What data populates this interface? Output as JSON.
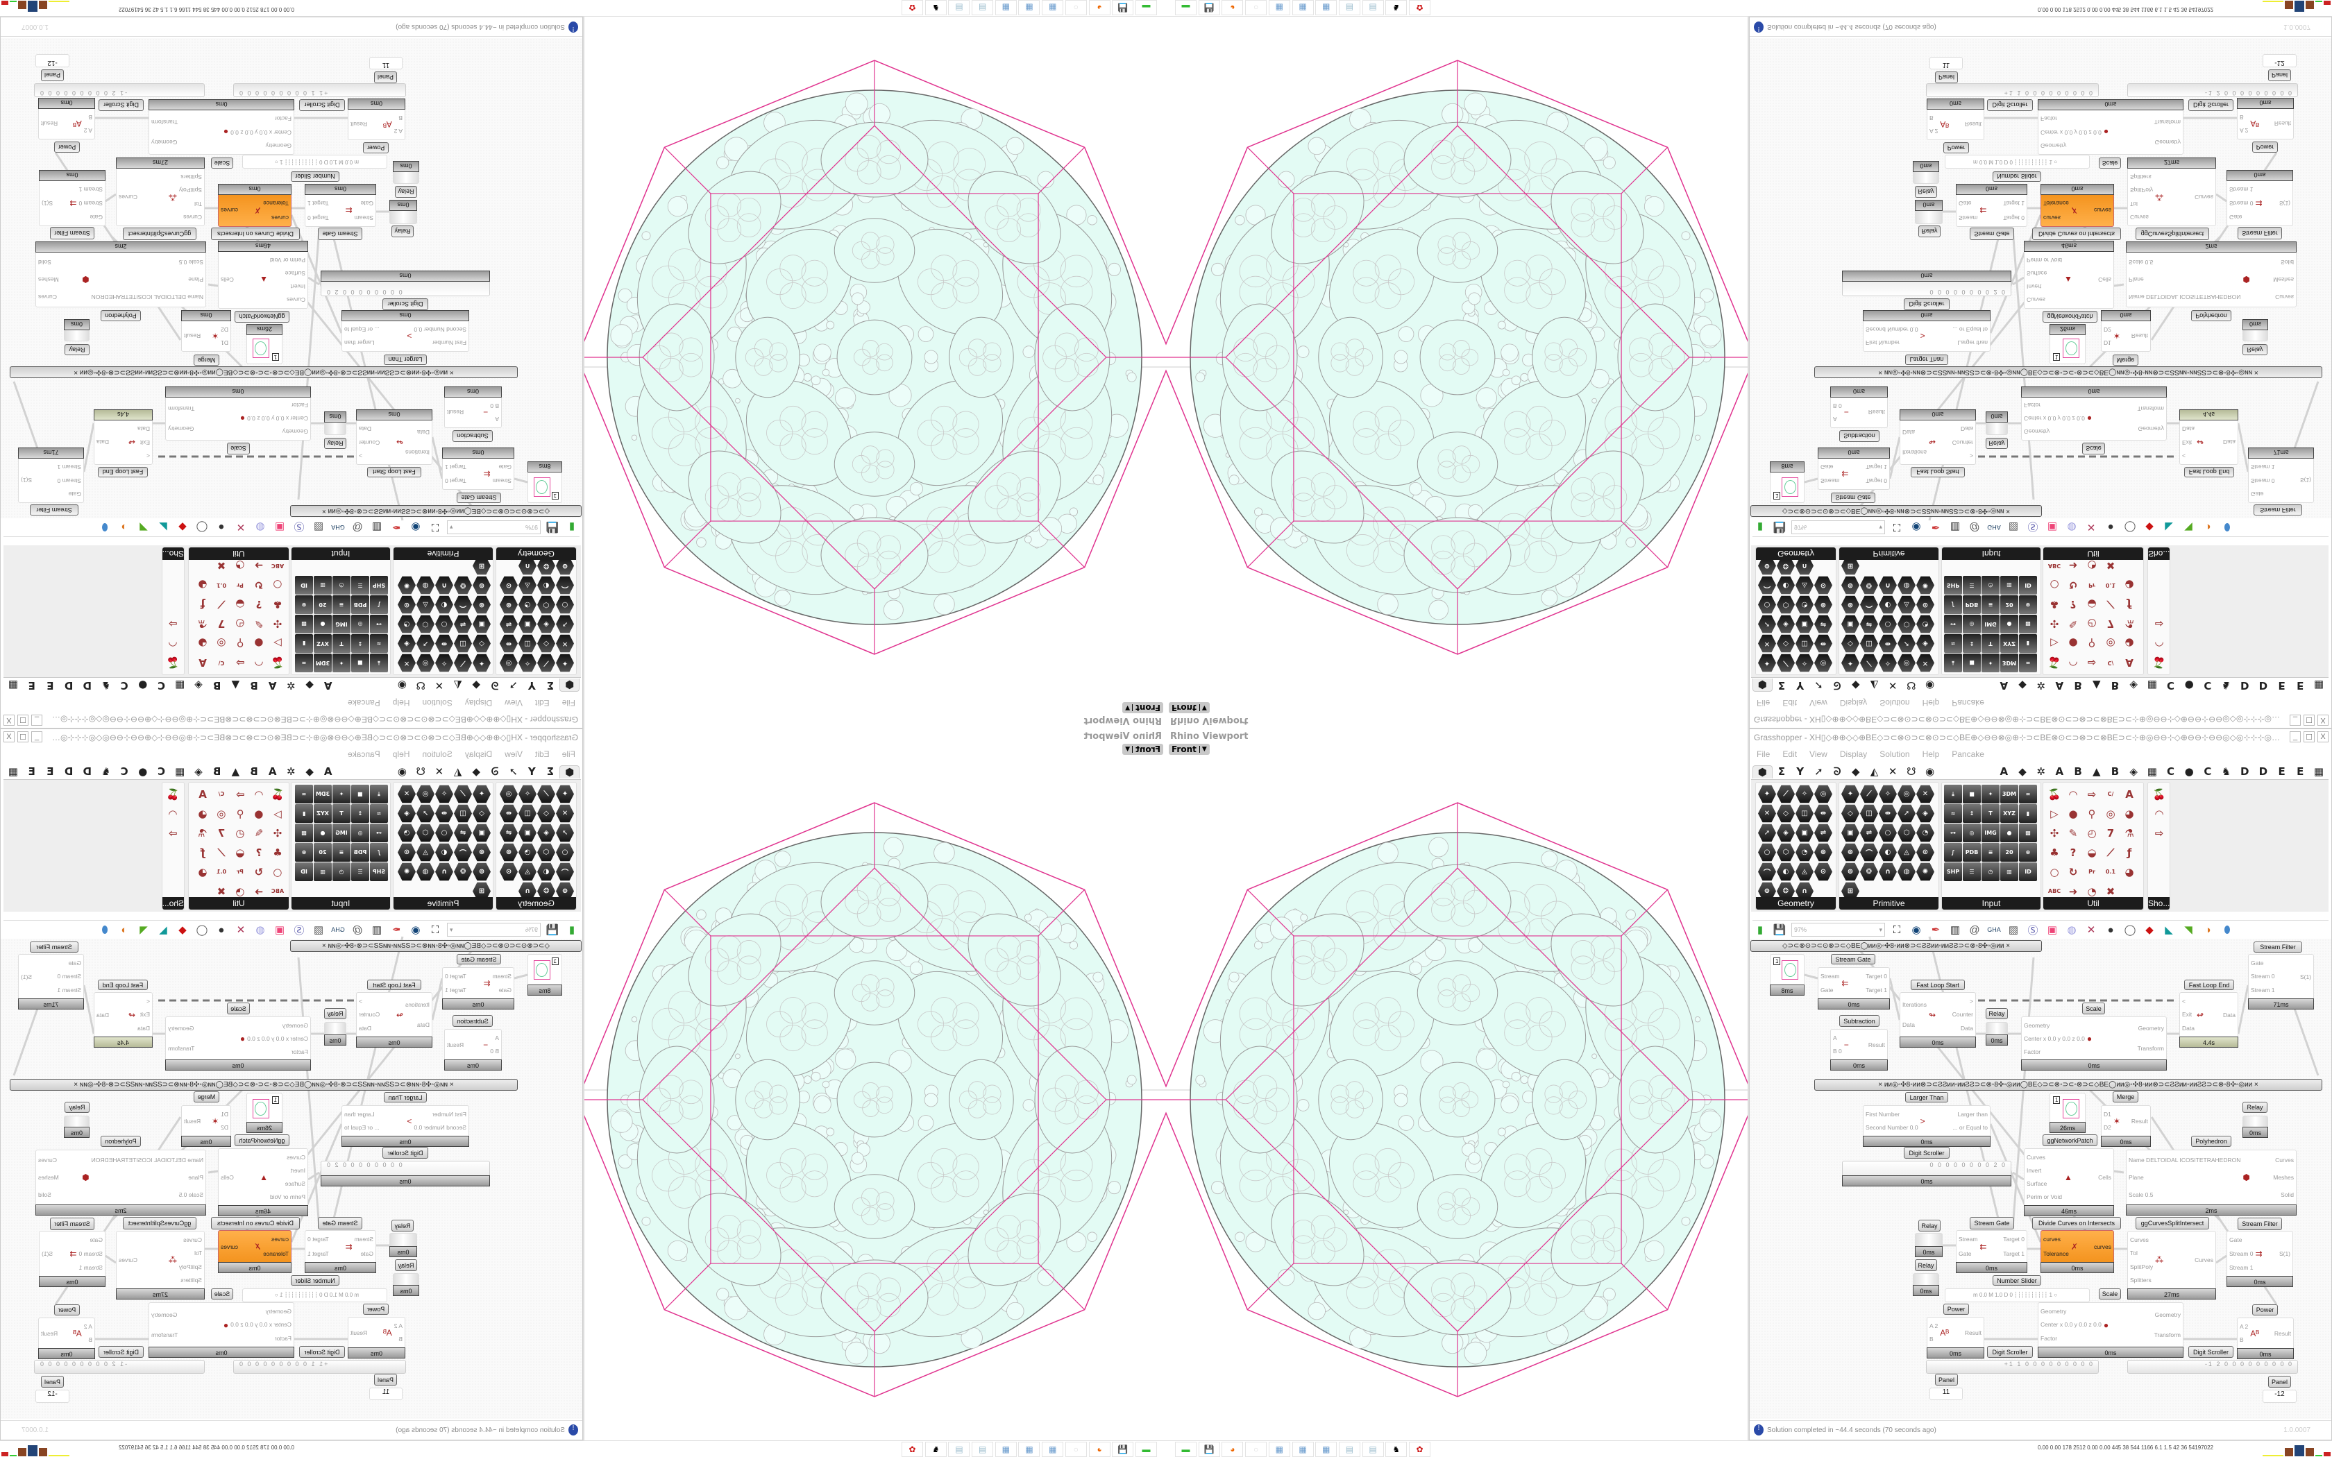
{
  "viewport": {
    "title": "Rhino Viewport",
    "view": "Front"
  },
  "gh": {
    "title": "Grasshopper - XH▯◇⊕⊕◇◇⊕BE◇⊃⊂⊗⊙⊃⊂⊗⊙⊃⊂◇BE⊕◇⊖⊖⊗◎⊕⊹⊃⊂BE⊗⊙⊂⊃⊗⊃⊂⊗BE⊃⊂⊹⊕◎⊖⊖⊹◇⊕⊖⊖⊹⊖⊖◎◇◎⊹⊹⊹◎◇◎⊖⊖⊗⊖⊖⊕◇⊖⊖◎⊕⊹⊃⊂BE⊗⊙⊂⊃⊗⊙⊂...",
    "window_buttons": [
      "_",
      "☐",
      "X"
    ],
    "menu": [
      "File",
      "Edit",
      "View",
      "Display",
      "Solution",
      "Help",
      "Pancake"
    ],
    "tabs": [
      "⬢",
      "Σ",
      "Y",
      "➚",
      "ᘐ",
      "◆",
      "◭",
      "✕",
      "☋",
      "◉",
      "",
      "",
      "",
      "A",
      "◆",
      "✲",
      "A",
      "B",
      "▲",
      "B",
      "◈",
      "▦",
      "C",
      "●",
      "C",
      "♞",
      "D",
      "D",
      "E",
      "E",
      "▦"
    ],
    "palette": [
      {
        "name": "Geometry",
        "cols": 4,
        "style": "hex",
        "icons": [
          "vector",
          "line",
          "surface",
          "spiral",
          "point",
          "plane",
          "box",
          "field",
          "direction",
          "rectangle",
          "text-tag",
          "curve-param",
          "circle",
          "brep",
          "mesh",
          "cluster",
          "arc",
          "twisted-box",
          "face",
          "group",
          "geometry-pipeline",
          "sphere-mesh",
          "attractor"
        ]
      },
      {
        "name": "Primitive",
        "cols": 5,
        "style": "hex",
        "icons": [
          "boolean",
          "data-path",
          "matrix",
          "domain",
          "file-path",
          "point-cloud",
          "guid",
          "time",
          "shader",
          "transform",
          "colour",
          "ucs",
          "hatch",
          "image",
          "number",
          "interval",
          "tree",
          "colour-2",
          "complex",
          "integer",
          "generic",
          "cut",
          "string",
          "id",
          "sphere",
          "gradient"
        ]
      },
      {
        "name": "Input",
        "cols": 5,
        "style": "sq",
        "icons": [
          {
            "n": "import",
            "t": "⤓"
          },
          {
            "n": "button",
            "t": "■"
          },
          {
            "n": "colour-wheel",
            "t": "✦"
          },
          {
            "n": "import-3dm",
            "t": "3DM"
          },
          {
            "n": "cluster-input",
            "t": "∞"
          },
          {
            "n": "graph-mapper",
            "t": "≈"
          },
          {
            "n": "gradient",
            "t": "↕"
          },
          {
            "n": "value-list",
            "t": "T"
          },
          {
            "n": "import-xyz",
            "t": "XYZ"
          },
          {
            "n": "toggle",
            "t": "▮"
          },
          {
            "n": "md-slider",
            "t": "⊶"
          },
          {
            "n": "colour-swatch",
            "t": "◎"
          },
          {
            "n": "import-image",
            "t": "IMG"
          },
          {
            "n": "control-knob",
            "t": "●"
          },
          {
            "n": "colour-picker",
            "t": "▩"
          },
          {
            "n": "bezier-span",
            "t": "∫"
          },
          {
            "n": "import-pdb",
            "t": "PDB"
          },
          {
            "n": "digit-scroller",
            "t": "≡"
          },
          {
            "n": "calendar",
            "t": "20"
          },
          {
            "n": "atom",
            "t": "⊛"
          },
          {
            "n": "import-shp",
            "t": "SHP"
          },
          {
            "n": "list",
            "t": "☰"
          },
          {
            "n": "clock",
            "t": "◷"
          },
          {
            "n": "spectrum",
            "t": "▥"
          },
          {
            "n": "id-tag",
            "t": "ID"
          }
        ]
      },
      {
        "name": "Util",
        "cols": 5,
        "style": "util",
        "icons": [
          "cherry",
          "relay",
          "arrow",
          "code",
          "text-param",
          "play",
          "record",
          "search",
          "fractal",
          "sphere-ball",
          "axes",
          "pen",
          "timer",
          "seven",
          "flask",
          "tree",
          "query",
          "egg",
          "graph",
          "fx",
          "circle-obj",
          "refresh",
          "premiere",
          "decimal",
          "palette",
          "abc",
          "arrow-right",
          "gauge",
          "cross"
        ]
      },
      {
        "name": "Sho...",
        "cols": 1,
        "style": "util",
        "icons": [
          "headset",
          "headset-2",
          "monitor"
        ]
      }
    ],
    "toolbar": {
      "zoom": "97%",
      "icons": [
        "new-file",
        "save",
        "zoom-extents",
        "preview-eye",
        "sketch-pen",
        "bug",
        "mail",
        "gha",
        "canvas-image",
        "search-s",
        "package",
        "bulb",
        "wires",
        "light-sphere",
        "wireframe-sphere",
        "red-shape",
        "teal-shape",
        "green-shape",
        "shaded-sphere",
        "blue-gem"
      ]
    },
    "status": {
      "message": "Solution completed in ~44.4 seconds (70 seconds ago)",
      "version": "1.0.0007",
      "icon": "info-icon"
    }
  },
  "canvas": {
    "components": [
      {
        "id": "grp-top",
        "kind": "group",
        "label": "◇⊃⊂⊗⊙⊃⊂⊙⊗⊃⊂◇BE◯ᴎᴎ◎◦✣8◦ᴎᴎ⊗⊃⊂ƧƧᴎᴎ◦ᴎᴎƧƧ⊃⊂⊗◦8✣◦◎ᴎᴎ      ×"
      },
      {
        "id": "filter-top",
        "kind": "comp",
        "label": "Stream Filter",
        "inputs": [
          "Gate",
          "Stream 0",
          "Stream 1"
        ],
        "outputs": [
          "S(1)"
        ],
        "footer": "71ms"
      },
      {
        "id": "swatch-1",
        "kind": "swatch",
        "value": "1",
        "footer": "8ms"
      },
      {
        "id": "sgate-1",
        "kind": "comp",
        "label": "Stream Gate",
        "inputs": [
          "Stream",
          "Gate"
        ],
        "outputs": [
          "Target 0",
          "Target 1"
        ],
        "footer": "0ms",
        "glyph": "⇇"
      },
      {
        "id": "fls",
        "kind": "comp",
        "label": "Fast Loop Start",
        "inputs": [
          "Iterations",
          "Data"
        ],
        "outputs": [
          ">",
          "Counter",
          "Data"
        ],
        "footer": "0ms",
        "glyph": "↬"
      },
      {
        "id": "relay-1",
        "kind": "relay",
        "label": "Relay",
        "footer": "0ms"
      },
      {
        "id": "scale-1",
        "kind": "comp",
        "label": "Scale",
        "inputs": [
          "Geometry",
          "Center  x 0.0  y 0.0  z 0.0",
          "Factor"
        ],
        "outputs": [
          "Geometry",
          "Transform"
        ],
        "footer": "0ms",
        "glyph": "●"
      },
      {
        "id": "fle",
        "kind": "comp",
        "label": "Fast Loop End",
        "inputs": [
          "<",
          "Exit",
          "Data"
        ],
        "outputs": [
          "Data"
        ],
        "footer": "4.4s",
        "green": true,
        "glyph": "↫"
      },
      {
        "id": "sub",
        "kind": "comp",
        "label": "Subtraction",
        "inputs": [
          "A",
          "B 0"
        ],
        "outputs": [
          "Result"
        ],
        "footer": "0ms",
        "glyph": "−"
      },
      {
        "id": "grp-mid",
        "kind": "group",
        "label": "×      ᴎᴎ◎◦✣8◦ᴎᴎ⊗⊃⊂ƧƧᴎᴎ◦ᴎᴎƧƧ⊃⊂⊗◦8✣◦◎ᴎᴎ◯BE◇⊃⊂⊗◦⊃⊂◦⊗⊃⊂◇BE◯ᴎᴎ◎◦✣8◦ᴎᴎ⊗⊃⊂ƧƧᴎᴎ◦ᴎᴎƧƧ⊃⊂⊗◦8✣◦◎ᴎᴎ      ×"
      },
      {
        "id": "larger",
        "kind": "comp",
        "label": "Larger Than",
        "inputs": [
          "First Number",
          "Second Number 0.0"
        ],
        "outputs": [
          "Larger than",
          "... or Equal to"
        ],
        "footer": "0ms",
        "glyph": ">"
      },
      {
        "id": "swatch-2",
        "kind": "swatch",
        "value": "1",
        "footer": "26ms"
      },
      {
        "id": "ggnp",
        "kind": "tag",
        "label": "ggNetworkPatch"
      },
      {
        "id": "merge",
        "kind": "comp",
        "label": "Merge",
        "inputs": [
          "D1",
          "D2"
        ],
        "outputs": [
          "Result"
        ],
        "footer": "0ms",
        "glyph": "✶"
      },
      {
        "id": "relay-2",
        "kind": "relay",
        "label": "Relay",
        "footer": "0ms"
      },
      {
        "id": "poly",
        "kind": "comp",
        "label": "Polyhedron",
        "inputs": [
          "Name DELTOIDAL ICOSITETRAHEDRON",
          "Plane",
          "Scale 0.5"
        ],
        "outputs": [
          "Curves",
          "Meshes",
          "Solid"
        ],
        "footer": "2ms",
        "glyph": "⬢"
      },
      {
        "id": "digit-1",
        "kind": "scroller",
        "label": "Digit Scroller",
        "value": "0 0 0 0 0 0 0 0 2 0",
        "footer": "0ms"
      },
      {
        "id": "cells",
        "kind": "comp",
        "label": "",
        "inputs": [
          "Curves",
          "Invert",
          "Surface",
          "Perim or Void"
        ],
        "outputs": [
          "Cells"
        ],
        "footer": "46ms",
        "glyph": "▲"
      },
      {
        "id": "relay-3",
        "kind": "relay",
        "label": "Relay",
        "footer": "0ms"
      },
      {
        "id": "sgate-2",
        "kind": "comp",
        "label": "Stream Gate",
        "inputs": [
          "Stream",
          "Gate"
        ],
        "outputs": [
          "Target 0",
          "Target 1"
        ],
        "footer": "0ms",
        "glyph": "⇇"
      },
      {
        "id": "dci",
        "kind": "comp",
        "label": "Divide Curves on Intersects",
        "inputs": [
          "curves",
          "Tolerance"
        ],
        "outputs": [
          "curves"
        ],
        "footer": "0ms",
        "orange": true,
        "glyph": "✗"
      },
      {
        "id": "ggcsi",
        "kind": "comp",
        "label": "ggCurvesSplitIntersect",
        "inputs": [
          "Curves",
          "Tol",
          "SplitPoly",
          "Splitters"
        ],
        "outputs": [
          "Curves"
        ],
        "footer": "27ms",
        "glyph": "⁂"
      },
      {
        "id": "filter-2",
        "kind": "comp",
        "label": "Stream Filter",
        "inputs": [
          "Gate",
          "Stream 0",
          "Stream 1"
        ],
        "outputs": [
          "S(1)"
        ],
        "footer": "0ms",
        "glyph": "⇉"
      },
      {
        "id": "relay-4",
        "kind": "relay",
        "label": "Relay",
        "footer": "0ms"
      },
      {
        "id": "nslider",
        "kind": "slider",
        "label": "Number Slider",
        "value": "m 0.0  M 1.0  D 0   ┆┆┆┆┆┆┆┆┆┆ 1 ○"
      },
      {
        "id": "scale-2",
        "kind": "comp",
        "label": "Scale",
        "inputs": [
          "Geometry",
          "Center  x 0.0  y 0.0  z 0.0",
          "Factor"
        ],
        "outputs": [
          "Geometry",
          "Transform"
        ],
        "footer": "0ms",
        "glyph": "●"
      },
      {
        "id": "power-1",
        "kind": "comp",
        "label": "Power",
        "inputs": [
          "A 2",
          "B"
        ],
        "outputs": [
          "Result"
        ],
        "footer": "0ms",
        "glyph": "Aᴮ"
      },
      {
        "id": "power-2",
        "kind": "comp",
        "label": "Power",
        "inputs": [
          "A 2",
          "B"
        ],
        "outputs": [
          "Result"
        ],
        "footer": "0ms",
        "glyph": "Aᴮ"
      },
      {
        "id": "digit-2",
        "kind": "scroller",
        "label": "Digit Scroller",
        "value": "+1 1 0 0 0 0 0 0 0 0 0"
      },
      {
        "id": "digit-3",
        "kind": "scroller",
        "label": "Digit Scroller",
        "value": "-1 2 0 0 0 0 0 0 0 0 0"
      },
      {
        "id": "panel-1",
        "kind": "panel",
        "label": "Panel",
        "value": "11"
      },
      {
        "id": "panel-2",
        "kind": "panel",
        "label": "Panel",
        "value": "-12"
      }
    ]
  },
  "taskbar": {
    "apps": [
      "battery-app",
      "64bit-save",
      "firefox",
      "blank-app",
      "calculator",
      "calculator-2",
      "calculator-3",
      "notepad",
      "notepad-2",
      "rhino",
      "red-gear-app"
    ],
    "stats": "0.00 0.00 178 2512 0.00 0.00 445 38 544 1166 6.1 1.5 42 36 54197022"
  },
  "colors": {
    "accent_orange": "#f08a10",
    "polyhedron_edges": "#e0338f",
    "packing_fill": "#e3fbf4",
    "packing_stroke": "#aaaaaa"
  }
}
